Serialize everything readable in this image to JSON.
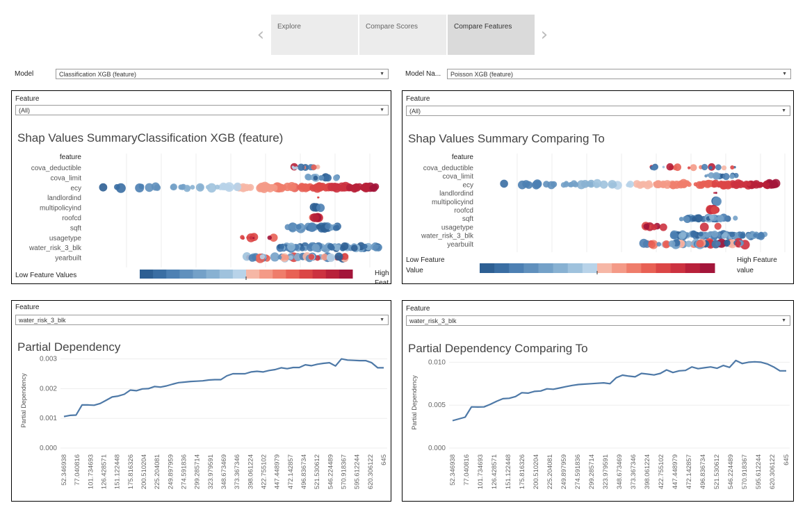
{
  "tabs": [
    {
      "label": "Explore",
      "active": false
    },
    {
      "label": "Compare Scores",
      "active": false
    },
    {
      "label": "Compare Features",
      "active": true
    }
  ],
  "model_left": {
    "label": "Model",
    "value": "Classification XGB (feature)"
  },
  "model_right": {
    "label": "Model Na...",
    "value": "Poisson XGB (feature)"
  },
  "shap_left": {
    "filter_label": "Feature",
    "filter_value": "(All)",
    "title": "Shap Values SummaryClassification XGB (feature)",
    "header": "feature",
    "features": [
      "cova_deductible",
      "cova_limit",
      "ecy",
      "landlordind",
      "multipolicyind",
      "roofcd",
      "sqft",
      "usagetype",
      "water_risk_3_blk",
      "yearbuilt"
    ],
    "legend_low": "Low Feature Values",
    "legend_high": "High Feat"
  },
  "shap_right": {
    "filter_label": "Feature",
    "filter_value": "(All)",
    "title": "Shap Values Summary Comparing To",
    "header": "feature",
    "features": [
      "cova_deductible",
      "cova_limit",
      "ecy",
      "landlordind",
      "multipolicyind",
      "roofcd",
      "sqft",
      "usagetype",
      "water_risk_3_blk",
      "yearbuilt"
    ],
    "legend_low_1": "Low Feature",
    "legend_low_2": "Value",
    "legend_high_1": "High Feature",
    "legend_high_2": "value"
  },
  "legend_colors": [
    "#2d5f93",
    "#3a6ea3",
    "#4d80b3",
    "#6090bd",
    "#74a1c8",
    "#88b1d2",
    "#9fc2dd",
    "#b8d3e9",
    "#f6b7a6",
    "#f49a87",
    "#ef7d6b",
    "#e86155",
    "#db4646",
    "#cc3240",
    "#b8213a",
    "#a3153a"
  ],
  "pd_left": {
    "filter_label": "Feature",
    "filter_value": "water_risk_3_blk",
    "title": "Partial Dependency"
  },
  "pd_right": {
    "filter_label": "Feature",
    "filter_value": "water_risk_3_blk",
    "title": "Partial Dependency Comparing To"
  },
  "chart_data": [
    {
      "type": "line",
      "title": "Partial Dependency",
      "ylabel": "Partial Dependency",
      "xlabel": "",
      "ylim": [
        0,
        0.0032
      ],
      "yticks": [
        "0.000",
        "0.001",
        "0.002",
        "0.003"
      ],
      "ytick_values": [
        0,
        0.001,
        0.002,
        0.003
      ],
      "x_tick_labels": [
        "52.346938",
        "77.040816",
        "101.734693",
        "126.428571",
        "151.122448",
        "175.816326",
        "200.510204",
        "225.204081",
        "249.897959",
        "274.591836",
        "299.285714",
        "323.979591",
        "348.673469",
        "373.367346",
        "398.061224",
        "422.755102",
        "447.448979",
        "472.142857",
        "496.836734",
        "521.530612",
        "546.224489",
        "570.918367",
        "595.612244",
        "620.306122",
        "645"
      ],
      "series": [
        {
          "values": [
            0.00106,
            0.0011,
            0.00111,
            0.00145,
            0.00145,
            0.00144,
            0.0015,
            0.00161,
            0.00172,
            0.00175,
            0.00181,
            0.00195,
            0.00193,
            0.00199,
            0.002,
            0.00207,
            0.00205,
            0.00209,
            0.00215,
            0.0022,
            0.00222,
            0.00224,
            0.00225,
            0.00226,
            0.00229,
            0.0023,
            0.0023,
            0.00243,
            0.0025,
            0.0025,
            0.0025,
            0.00256,
            0.00258,
            0.00256,
            0.00261,
            0.00264,
            0.0027,
            0.00267,
            0.00271,
            0.00271,
            0.0028,
            0.00277,
            0.00282,
            0.00285,
            0.00287,
            0.00276,
            0.003,
            0.00296,
            0.00295,
            0.00294,
            0.00294,
            0.00287,
            0.0027,
            0.0027
          ]
        }
      ],
      "color": "#4e79a7"
    },
    {
      "type": "line",
      "title": "Partial Dependency Comparing To",
      "ylabel": "Partial Dependency",
      "xlabel": "",
      "ylim": [
        0,
        0.0106
      ],
      "yticks": [
        "0.000",
        "0.005",
        "0.010"
      ],
      "ytick_values": [
        0,
        0.005,
        0.01
      ],
      "x_tick_labels": [
        "52.346938",
        "77.040816",
        "101.734693",
        "126.428571",
        "151.122448",
        "175.816326",
        "200.510204",
        "225.204081",
        "249.897959",
        "274.591836",
        "299.285714",
        "323.979591",
        "348.673469",
        "373.367346",
        "398.061224",
        "422.755102",
        "447.448979",
        "472.142857",
        "496.836734",
        "521.530612",
        "546.224489",
        "570.918367",
        "595.612244",
        "620.306122",
        "645"
      ],
      "series": [
        {
          "values": [
            0.0032,
            0.0034,
            0.0036,
            0.0048,
            0.00478,
            0.0048,
            0.0051,
            0.00545,
            0.00575,
            0.0058,
            0.006,
            0.00645,
            0.0064,
            0.0066,
            0.00665,
            0.0069,
            0.00685,
            0.007,
            0.00715,
            0.0073,
            0.0074,
            0.00745,
            0.0075,
            0.00755,
            0.0076,
            0.0075,
            0.0082,
            0.0085,
            0.00838,
            0.0083,
            0.0087,
            0.00862,
            0.00852,
            0.0087,
            0.0091,
            0.0088,
            0.009,
            0.00905,
            0.00945,
            0.00925,
            0.00935,
            0.00945,
            0.0093,
            0.00962,
            0.0094,
            0.0102,
            0.00985,
            0.01,
            0.01005,
            0.01,
            0.0098,
            0.00945,
            0.009,
            0.009
          ]
        }
      ],
      "color": "#4e79a7"
    }
  ]
}
